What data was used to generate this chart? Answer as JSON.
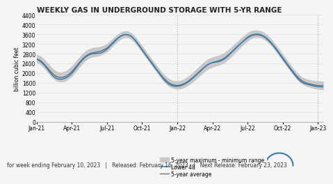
{
  "title": "WEEKLY GAS IN UNDERGROUND STORAGE WITH 5-YR RANGE",
  "ylabel": "billion cubic feet",
  "ylim": [
    0,
    4400
  ],
  "yticks": [
    0,
    400,
    800,
    1200,
    1600,
    2000,
    2400,
    2800,
    3200,
    3600,
    4000,
    4400
  ],
  "xtick_labels": [
    "Jan-21",
    "Apr-21",
    "Jul-21",
    "Oct-21",
    "Jan-22",
    "Apr-22",
    "Jul-22",
    "Oct-22",
    "Jan-23"
  ],
  "background_color": "#f5f5f5",
  "fill_color": "#c8c8c8",
  "lower48_color": "#2980b9",
  "avg_color": "#666666",
  "vline_color": "#aaaaaa",
  "grid_color": "#e0e0e0",
  "footnote": "for week ending February 10, 2023   |   Released: February 16, 2023   |   Next Release: February 23, 2023",
  "legend_labels": [
    "5-year maximum - minimum range",
    "Lower 48",
    "5-year average"
  ],
  "title_fontsize": 7.5,
  "footnote_fontsize": 5.5,
  "ylabel_fontsize": 5.5,
  "tick_fontsize": 5.5,
  "legend_fontsize": 5.5
}
